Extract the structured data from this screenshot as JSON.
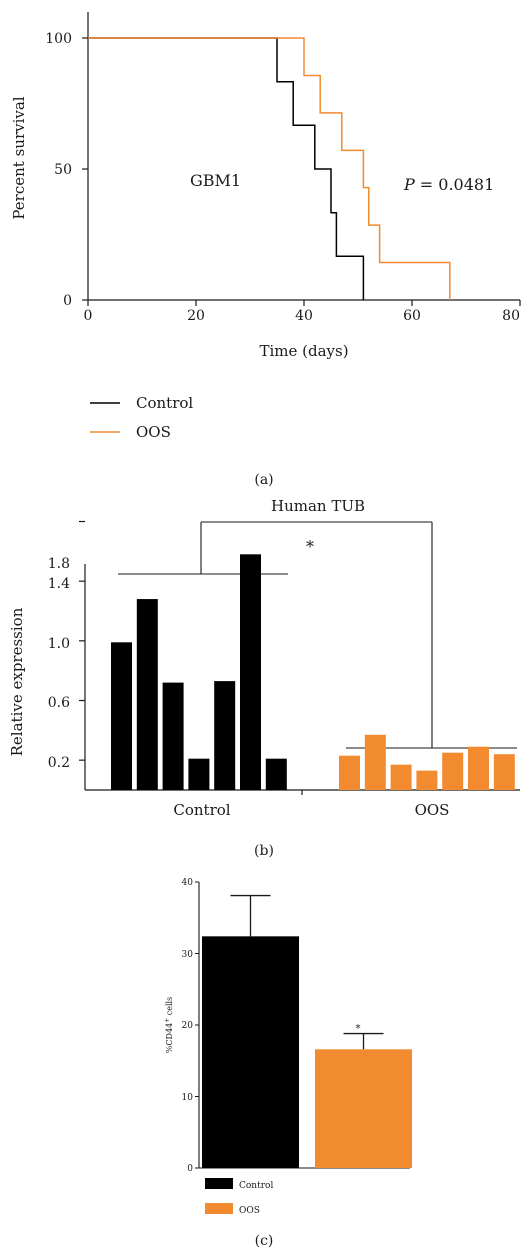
{
  "colors": {
    "control": "#000000",
    "oos": "#f28a30",
    "axis": "#1a1a1a"
  },
  "chart_data": [
    {
      "type": "line",
      "panel_label": "(a)",
      "xlabel": "Time (days)",
      "ylabel": "Percent survival",
      "xlim": [
        0,
        80
      ],
      "ylim": [
        0,
        100
      ],
      "xticks": [
        "0",
        "20",
        "40",
        "60",
        "80"
      ],
      "yticks": [
        "0",
        "50",
        "100"
      ],
      "annotation_group": "GBM1",
      "annotation_p_symbol": "P",
      "annotation_p_value": "= 0.0481",
      "legend": [
        "Control",
        "OOS"
      ],
      "series": [
        {
          "name": "Control",
          "x": [
            0,
            35,
            38,
            42,
            45,
            46,
            51
          ],
          "y": [
            100,
            83.3,
            66.7,
            50,
            33.3,
            16.7,
            0
          ]
        },
        {
          "name": "OOS",
          "x": [
            0,
            38,
            40,
            43,
            47,
            51,
            52,
            54,
            67
          ],
          "y": [
            100,
            100,
            85.7,
            71.4,
            57.1,
            42.9,
            28.6,
            14.3,
            0
          ]
        }
      ]
    },
    {
      "type": "bar",
      "panel_label": "(b)",
      "title": "Human TUB",
      "significance": "*",
      "ylabel": "Relative expression",
      "ylim": [
        0,
        1.8
      ],
      "yticks": [
        "0.2",
        "0.6",
        "1.0",
        "1.4",
        "1.8"
      ],
      "groups": [
        "Control",
        "OOS"
      ],
      "series": [
        {
          "name": "Control",
          "values": [
            0.99,
            1.28,
            0.72,
            0.21,
            0.73,
            1.58,
            0.21
          ]
        },
        {
          "name": "OOS",
          "values": [
            0.23,
            0.37,
            0.17,
            0.13,
            0.25,
            0.29,
            0.24
          ]
        }
      ]
    },
    {
      "type": "bar",
      "panel_label": "(c)",
      "ylabel": "%CD44+ cells",
      "ylabel_main": "%CD44",
      "ylabel_sup": "+",
      "ylabel_tail": " cells",
      "ylim": [
        0,
        40
      ],
      "yticks": [
        "0",
        "10",
        "20",
        "30",
        "40"
      ],
      "categories": [
        "Control",
        "OOS"
      ],
      "values": [
        32.4,
        16.6
      ],
      "errors": [
        5.7,
        2.2
      ],
      "significance": "*",
      "legend": [
        "Control",
        "OOS"
      ]
    }
  ]
}
